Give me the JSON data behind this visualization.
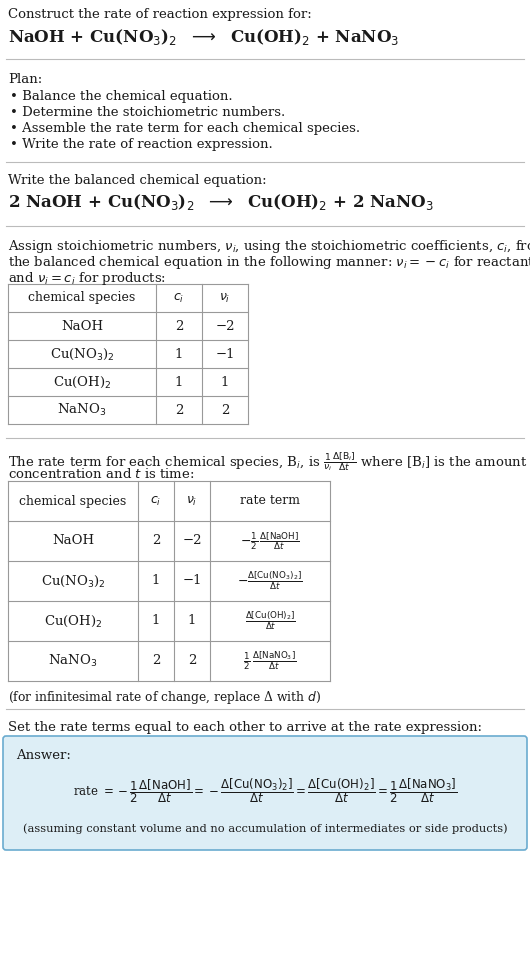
{
  "bg_color": "#ffffff",
  "text_color": "#1a1a1a",
  "title_line": "Construct the rate of reaction expression for:",
  "plan_title": "Plan:",
  "plan_items": [
    "• Balance the chemical equation.",
    "• Determine the stoichiometric numbers.",
    "• Assemble the rate term for each chemical species.",
    "• Write the rate of reaction expression."
  ],
  "balanced_label": "Write the balanced chemical equation:",
  "stoich_intro_1": "Assign stoichiometric numbers, $\\nu_i$, using the stoichiometric coefficients, $c_i$, from",
  "stoich_intro_2": "the balanced chemical equation in the following manner: $\\nu_i = -c_i$ for reactants",
  "stoich_intro_3": "and $\\nu_i = c_i$ for products:",
  "rate_intro_1": "The rate term for each chemical species, B$_i$, is $\\frac{1}{\\nu_i}\\frac{\\Delta[\\mathrm{B}_i]}{\\Delta t}$ where [B$_i$] is the amount",
  "rate_intro_2": "concentration and $t$ is time:",
  "infinitesimal_note": "(for infinitesimal rate of change, replace Δ with $d$)",
  "set_equal_label": "Set the rate terms equal to each other to arrive at the rate expression:",
  "answer_label": "Answer:",
  "answer_box_color": "#ddeef6",
  "answer_box_border": "#6aabcf",
  "answer_note": "(assuming constant volume and no accumulation of intermediates or side products)"
}
